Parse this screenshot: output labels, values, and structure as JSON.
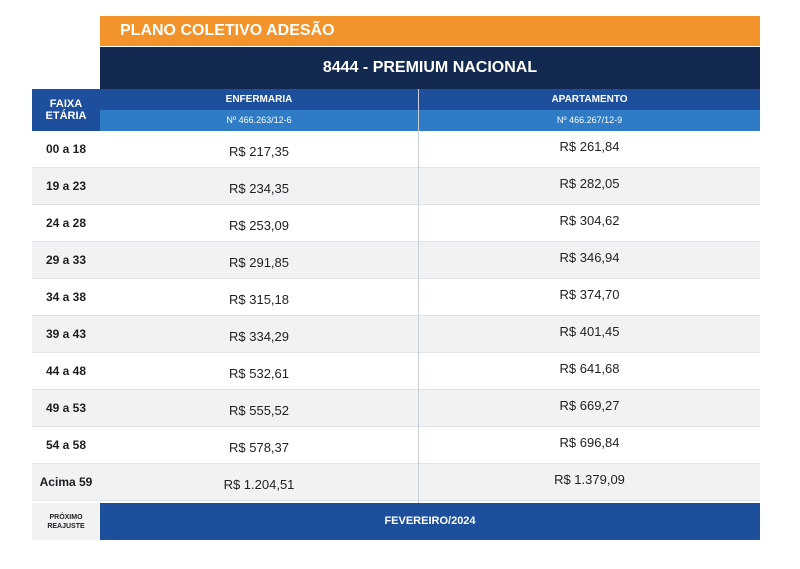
{
  "header": {
    "plan_type": "PLANO COLETIVO ADESÃO",
    "plan_name": "8444 - PREMIUM NACIONAL"
  },
  "table": {
    "age_header_line1": "FAIXA",
    "age_header_line2": "ETÁRIA",
    "columns": [
      {
        "label": "ENFERMARIA",
        "registration": "Nº 466.263/12-6"
      },
      {
        "label": "APARTAMENTO",
        "registration": "Nº 466.267/12-9"
      }
    ],
    "rows": [
      {
        "age": "00 a 18",
        "enfermaria": "R$ 217,35",
        "apartamento": "R$ 261,84"
      },
      {
        "age": "19 a 23",
        "enfermaria": "R$ 234,35",
        "apartamento": "R$ 282,05"
      },
      {
        "age": "24 a 28",
        "enfermaria": "R$ 253,09",
        "apartamento": "R$ 304,62"
      },
      {
        "age": "29 a 33",
        "enfermaria": "R$ 291,85",
        "apartamento": "R$ 346,94"
      },
      {
        "age": "34 a 38",
        "enfermaria": "R$ 315,18",
        "apartamento": "R$ 374,70"
      },
      {
        "age": "39 a 43",
        "enfermaria": "R$ 334,29",
        "apartamento": "R$ 401,45"
      },
      {
        "age": "44 a 48",
        "enfermaria": "R$ 532,61",
        "apartamento": "R$ 641,68"
      },
      {
        "age": "49 a 53",
        "enfermaria": "R$ 555,52",
        "apartamento": "R$ 669,27"
      },
      {
        "age": "54 a 58",
        "enfermaria": "R$ 578,37",
        "apartamento": "R$ 696,84"
      },
      {
        "age": "Acima 59",
        "enfermaria": "R$ 1.204,51",
        "apartamento": "R$ 1.379,09"
      }
    ]
  },
  "footer": {
    "label_line1": "PRÓXIMO",
    "label_line2": "REAJUSTE",
    "value": "FEVEREIRO/2024"
  },
  "colors": {
    "orange": "#f2932c",
    "navy": "#13294f",
    "blue": "#1d4f9c",
    "light_blue": "#2f7bc6",
    "stripe": "#f1f2f4"
  }
}
